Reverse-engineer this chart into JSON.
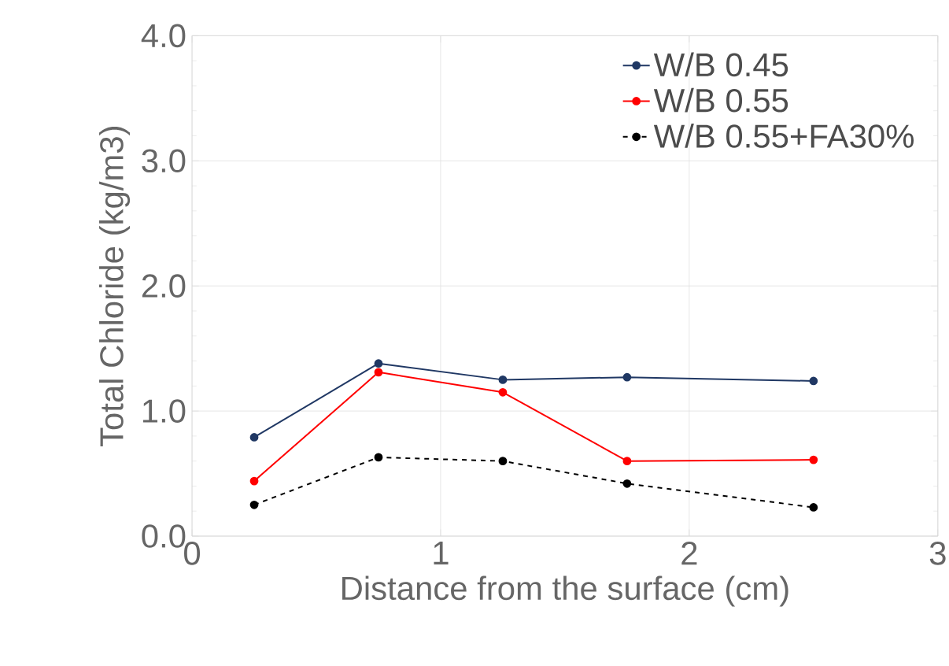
{
  "chart_data": {
    "type": "line",
    "xlabel": "Distance from the surface (cm)",
    "ylabel": "Total Chloride (kg/m3)",
    "x": [
      0.25,
      0.75,
      1.25,
      1.75,
      2.5
    ],
    "series": [
      {
        "name": "W/B 0.45",
        "color": "#203864",
        "values": [
          0.79,
          1.38,
          1.25,
          1.27,
          1.24
        ]
      },
      {
        "name": "W/B 0.55",
        "color": "#ff0000",
        "values": [
          0.44,
          1.31,
          1.15,
          0.6,
          0.61
        ]
      },
      {
        "name": "W/B 0.55+FA30%",
        "color": "#000000",
        "values": [
          0.25,
          0.63,
          0.6,
          0.42,
          0.23
        ],
        "line_style": "dashed"
      }
    ],
    "xlim": [
      0,
      3
    ],
    "ylim": [
      0,
      4
    ],
    "xticks": [
      0,
      1,
      2,
      3
    ],
    "yticks": [
      {
        "value": 0,
        "label": "0.0"
      },
      {
        "value": 1,
        "label": "1.0"
      },
      {
        "value": 2,
        "label": "2.0"
      },
      {
        "value": 3,
        "label": "3.0"
      },
      {
        "value": 4,
        "label": "4.0"
      }
    ],
    "grid": true,
    "legend": "top right",
    "marker": "circle"
  }
}
